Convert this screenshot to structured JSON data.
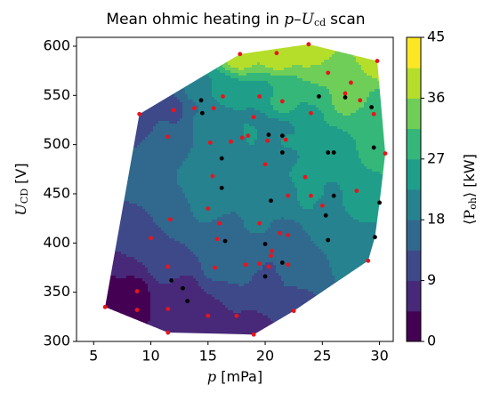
{
  "chart_data": {
    "type": "tricontour",
    "title": [
      "Mean ohmic heating in",
      "p",
      "–",
      "U",
      "cd",
      "scan"
    ],
    "xlabel": [
      "p",
      "[mPa]"
    ],
    "ylabel": [
      "U",
      "CD",
      "[V]"
    ],
    "xlim": [
      3.5,
      31.2
    ],
    "ylim": [
      300,
      609
    ],
    "xticks": [
      5,
      10,
      15,
      20,
      25,
      30
    ],
    "yticks": [
      300,
      350,
      400,
      450,
      500,
      550,
      600
    ],
    "colorbar": {
      "label": [
        "⟨P",
        "oh",
        "⟩ [kW]"
      ],
      "lim": [
        0,
        45
      ],
      "ticks": [
        0,
        9,
        18,
        27,
        36,
        45
      ],
      "levels": [
        0,
        4.5,
        9,
        13.5,
        18,
        22.5,
        27,
        31.5,
        36,
        40.5,
        45
      ],
      "colors": [
        "#440154",
        "#482878",
        "#3e4989",
        "#31688e",
        "#26828e",
        "#1f9e89",
        "#35b779",
        "#6ece58",
        "#b5de2b",
        "#fde725"
      ]
    },
    "series": [
      {
        "color": "#e8141c",
        "x": [
          9.0,
          6.0,
          8.8,
          8.8,
          10.0,
          11.5,
          11.7,
          11.5,
          11.5,
          11.5,
          12.0,
          13.8,
          15.5,
          15.8,
          15.6,
          15.0,
          17.5,
          19.0,
          16.3,
          17.8,
          21.0,
          23.8,
          29.8,
          19.5,
          21.5,
          24.0,
          25.5,
          27.0,
          27.5,
          28.3,
          29.5,
          19.0,
          18.5,
          17.0,
          21.8,
          20.2,
          18.0,
          15.2,
          15.4,
          15.0,
          16.0,
          19.5,
          20.0,
          22.0,
          23.5,
          24.0,
          25.0,
          28.0,
          30.5,
          29.0,
          21.3,
          22.0,
          20.6,
          18.3,
          19.5,
          20.3,
          22.0,
          22.5,
          20.5
        ],
        "y": [
          531,
          335,
          351,
          332,
          405,
          508,
          424,
          376,
          333,
          309,
          535,
          537,
          537,
          404,
          375,
          326,
          326,
          307,
          549,
          592,
          593,
          602,
          585,
          549,
          544,
          532,
          573,
          552,
          563,
          545,
          531,
          528,
          509,
          503,
          505,
          504,
          507,
          502,
          468,
          435,
          420,
          420,
          480,
          448,
          467,
          448,
          438,
          453,
          491,
          382,
          410,
          408,
          392,
          378,
          379,
          376,
          378,
          331,
          387
        ],
        "z": [
          10,
          2,
          4,
          3,
          10,
          15,
          16,
          12,
          7,
          6,
          12,
          16,
          20,
          15,
          14,
          8,
          9,
          6,
          24,
          38,
          38,
          40,
          40,
          26,
          28,
          26,
          36,
          34,
          33,
          32,
          30,
          22,
          24,
          22,
          24,
          20,
          21,
          18,
          20,
          19,
          18,
          19,
          22,
          22,
          23,
          24,
          22,
          26,
          28,
          22,
          17,
          17,
          16,
          15,
          14,
          13,
          14,
          12,
          15
        ]
      },
      {
        "color": "#000000",
        "x": [
          14.4,
          14.5,
          20.3,
          21.5,
          16.2,
          21.5,
          25.5,
          26.0,
          29.5,
          30.0,
          29.6,
          26.0,
          16.2,
          20.5,
          25.3,
          25.5,
          20.0,
          16.5,
          21.5,
          20.0,
          11.8,
          12.8,
          13.2,
          24.7,
          29.3,
          27.0
        ],
        "y": [
          545,
          532,
          510,
          509,
          486,
          492,
          492,
          492,
          497,
          441,
          406,
          448,
          456,
          443,
          428,
          403,
          399,
          402,
          380,
          366,
          362,
          354,
          341,
          549,
          538,
          548
        ],
        "z": [
          22,
          20,
          20,
          20,
          20,
          22,
          24,
          24,
          28,
          24,
          22,
          22,
          20,
          20,
          21,
          18,
          17,
          15,
          14,
          12,
          9,
          8,
          7,
          30,
          30,
          32
        ]
      }
    ]
  }
}
